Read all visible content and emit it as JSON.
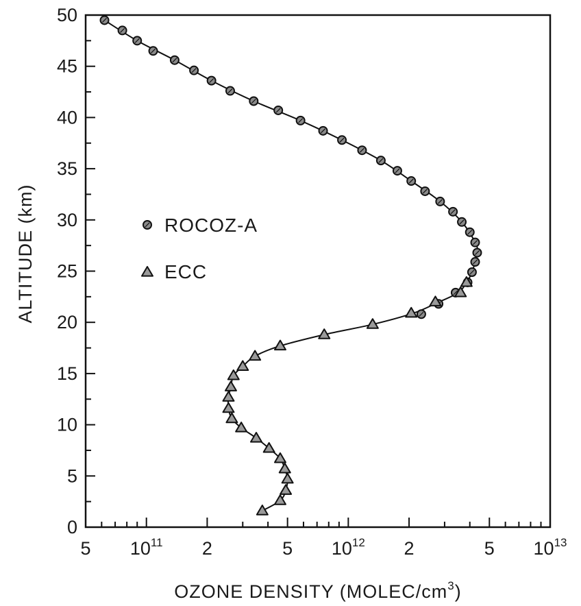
{
  "chart_data": {
    "type": "line",
    "xlabel": "OZONE DENSITY (MOLEC/cm",
    "xlabel_superscript": "3",
    "xlabel_close": ")",
    "ylabel": "ALTITUDE (km)",
    "x_scale": "log",
    "xlim": [
      50000000000.0,
      10000000000000.0
    ],
    "ylim": [
      0,
      50
    ],
    "grid": false,
    "legend_position": "left-middle",
    "line_color": "#111111",
    "marker_color": "#222222",
    "x_ticks": [
      {
        "value": 50000000000.0,
        "label": "5",
        "exp": ""
      },
      {
        "value": 100000000000.0,
        "label": "10",
        "exp": "11"
      },
      {
        "value": 200000000000.0,
        "label": "2",
        "exp": ""
      },
      {
        "value": 500000000000.0,
        "label": "5",
        "exp": ""
      },
      {
        "value": 1000000000000.0,
        "label": "10",
        "exp": "12"
      },
      {
        "value": 2000000000000.0,
        "label": "2",
        "exp": ""
      },
      {
        "value": 5000000000000.0,
        "label": "5",
        "exp": ""
      },
      {
        "value": 10000000000000.0,
        "label": "10",
        "exp": "13"
      }
    ],
    "y_ticks": [
      0,
      5,
      10,
      15,
      20,
      25,
      30,
      35,
      40,
      45,
      50
    ],
    "series": [
      {
        "name": "ROCOZ-A",
        "marker": "circle",
        "points": [
          {
            "x": 62000000000.0,
            "y": 49.5
          },
          {
            "x": 76000000000.0,
            "y": 48.5
          },
          {
            "x": 90000000000.0,
            "y": 47.5
          },
          {
            "x": 108000000000.0,
            "y": 46.5
          },
          {
            "x": 138000000000.0,
            "y": 45.6
          },
          {
            "x": 172000000000.0,
            "y": 44.6
          },
          {
            "x": 210000000000.0,
            "y": 43.6
          },
          {
            "x": 260000000000.0,
            "y": 42.6
          },
          {
            "x": 340000000000.0,
            "y": 41.6
          },
          {
            "x": 450000000000.0,
            "y": 40.7
          },
          {
            "x": 580000000000.0,
            "y": 39.7
          },
          {
            "x": 750000000000.0,
            "y": 38.7
          },
          {
            "x": 930000000000.0,
            "y": 37.8
          },
          {
            "x": 1170000000000.0,
            "y": 36.8
          },
          {
            "x": 1450000000000.0,
            "y": 35.8
          },
          {
            "x": 1750000000000.0,
            "y": 34.8
          },
          {
            "x": 2050000000000.0,
            "y": 33.8
          },
          {
            "x": 2400000000000.0,
            "y": 32.8
          },
          {
            "x": 2850000000000.0,
            "y": 31.8
          },
          {
            "x": 3300000000000.0,
            "y": 30.8
          },
          {
            "x": 3650000000000.0,
            "y": 29.8
          },
          {
            "x": 4000000000000.0,
            "y": 28.8
          },
          {
            "x": 4250000000000.0,
            "y": 27.8
          },
          {
            "x": 4350000000000.0,
            "y": 26.8
          },
          {
            "x": 4250000000000.0,
            "y": 25.9
          },
          {
            "x": 4100000000000.0,
            "y": 24.9
          },
          {
            "x": 3900000000000.0,
            "y": 23.9
          },
          {
            "x": 3400000000000.0,
            "y": 22.9
          },
          {
            "x": 2800000000000.0,
            "y": 21.8
          },
          {
            "x": 2300000000000.0,
            "y": 20.8
          }
        ]
      },
      {
        "name": "ECC",
        "marker": "triangle",
        "points": [
          {
            "x": 3600000000000.0,
            "y": 22.9
          },
          {
            "x": 3850000000000.0,
            "y": 23.9
          },
          {
            "x": 2700000000000.0,
            "y": 22.0
          },
          {
            "x": 2050000000000.0,
            "y": 20.9
          },
          {
            "x": 1320000000000.0,
            "y": 19.8
          },
          {
            "x": 760000000000.0,
            "y": 18.8
          },
          {
            "x": 460000000000.0,
            "y": 17.7
          },
          {
            "x": 345000000000.0,
            "y": 16.7
          },
          {
            "x": 300000000000.0,
            "y": 15.7
          },
          {
            "x": 270000000000.0,
            "y": 14.8
          },
          {
            "x": 262000000000.0,
            "y": 13.7
          },
          {
            "x": 255000000000.0,
            "y": 12.7
          },
          {
            "x": 255000000000.0,
            "y": 11.6
          },
          {
            "x": 265000000000.0,
            "y": 10.6
          },
          {
            "x": 295000000000.0,
            "y": 9.7
          },
          {
            "x": 350000000000.0,
            "y": 8.7
          },
          {
            "x": 405000000000.0,
            "y": 7.7
          },
          {
            "x": 460000000000.0,
            "y": 6.7
          },
          {
            "x": 485000000000.0,
            "y": 5.7
          },
          {
            "x": 500000000000.0,
            "y": 4.7
          },
          {
            "x": 490000000000.0,
            "y": 3.6
          },
          {
            "x": 460000000000.0,
            "y": 2.6
          },
          {
            "x": 375000000000.0,
            "y": 1.6
          }
        ]
      }
    ],
    "curve_profile": [
      {
        "x": 62000000000.0,
        "y": 49.5
      },
      {
        "x": 90000000000.0,
        "y": 47.5
      },
      {
        "x": 138000000000.0,
        "y": 45.6
      },
      {
        "x": 210000000000.0,
        "y": 43.6
      },
      {
        "x": 340000000000.0,
        "y": 41.6
      },
      {
        "x": 580000000000.0,
        "y": 39.7
      },
      {
        "x": 930000000000.0,
        "y": 37.8
      },
      {
        "x": 1450000000000.0,
        "y": 35.8
      },
      {
        "x": 2050000000000.0,
        "y": 33.8
      },
      {
        "x": 2850000000000.0,
        "y": 31.8
      },
      {
        "x": 3650000000000.0,
        "y": 29.8
      },
      {
        "x": 4250000000000.0,
        "y": 27.8
      },
      {
        "x": 4350000000000.0,
        "y": 26.8
      },
      {
        "x": 4100000000000.0,
        "y": 24.9
      },
      {
        "x": 3850000000000.0,
        "y": 23.9
      },
      {
        "x": 3500000000000.0,
        "y": 22.9
      },
      {
        "x": 2750000000000.0,
        "y": 21.9
      },
      {
        "x": 2100000000000.0,
        "y": 20.9
      },
      {
        "x": 1320000000000.0,
        "y": 19.8
      },
      {
        "x": 760000000000.0,
        "y": 18.8
      },
      {
        "x": 460000000000.0,
        "y": 17.7
      },
      {
        "x": 345000000000.0,
        "y": 16.7
      },
      {
        "x": 300000000000.0,
        "y": 15.7
      },
      {
        "x": 270000000000.0,
        "y": 14.8
      },
      {
        "x": 262000000000.0,
        "y": 13.7
      },
      {
        "x": 255000000000.0,
        "y": 12.7
      },
      {
        "x": 255000000000.0,
        "y": 11.6
      },
      {
        "x": 265000000000.0,
        "y": 10.6
      },
      {
        "x": 295000000000.0,
        "y": 9.7
      },
      {
        "x": 350000000000.0,
        "y": 8.7
      },
      {
        "x": 405000000000.0,
        "y": 7.7
      },
      {
        "x": 460000000000.0,
        "y": 6.7
      },
      {
        "x": 485000000000.0,
        "y": 5.7
      },
      {
        "x": 500000000000.0,
        "y": 4.7
      },
      {
        "x": 490000000000.0,
        "y": 3.6
      },
      {
        "x": 460000000000.0,
        "y": 2.6
      },
      {
        "x": 375000000000.0,
        "y": 1.6
      }
    ]
  }
}
